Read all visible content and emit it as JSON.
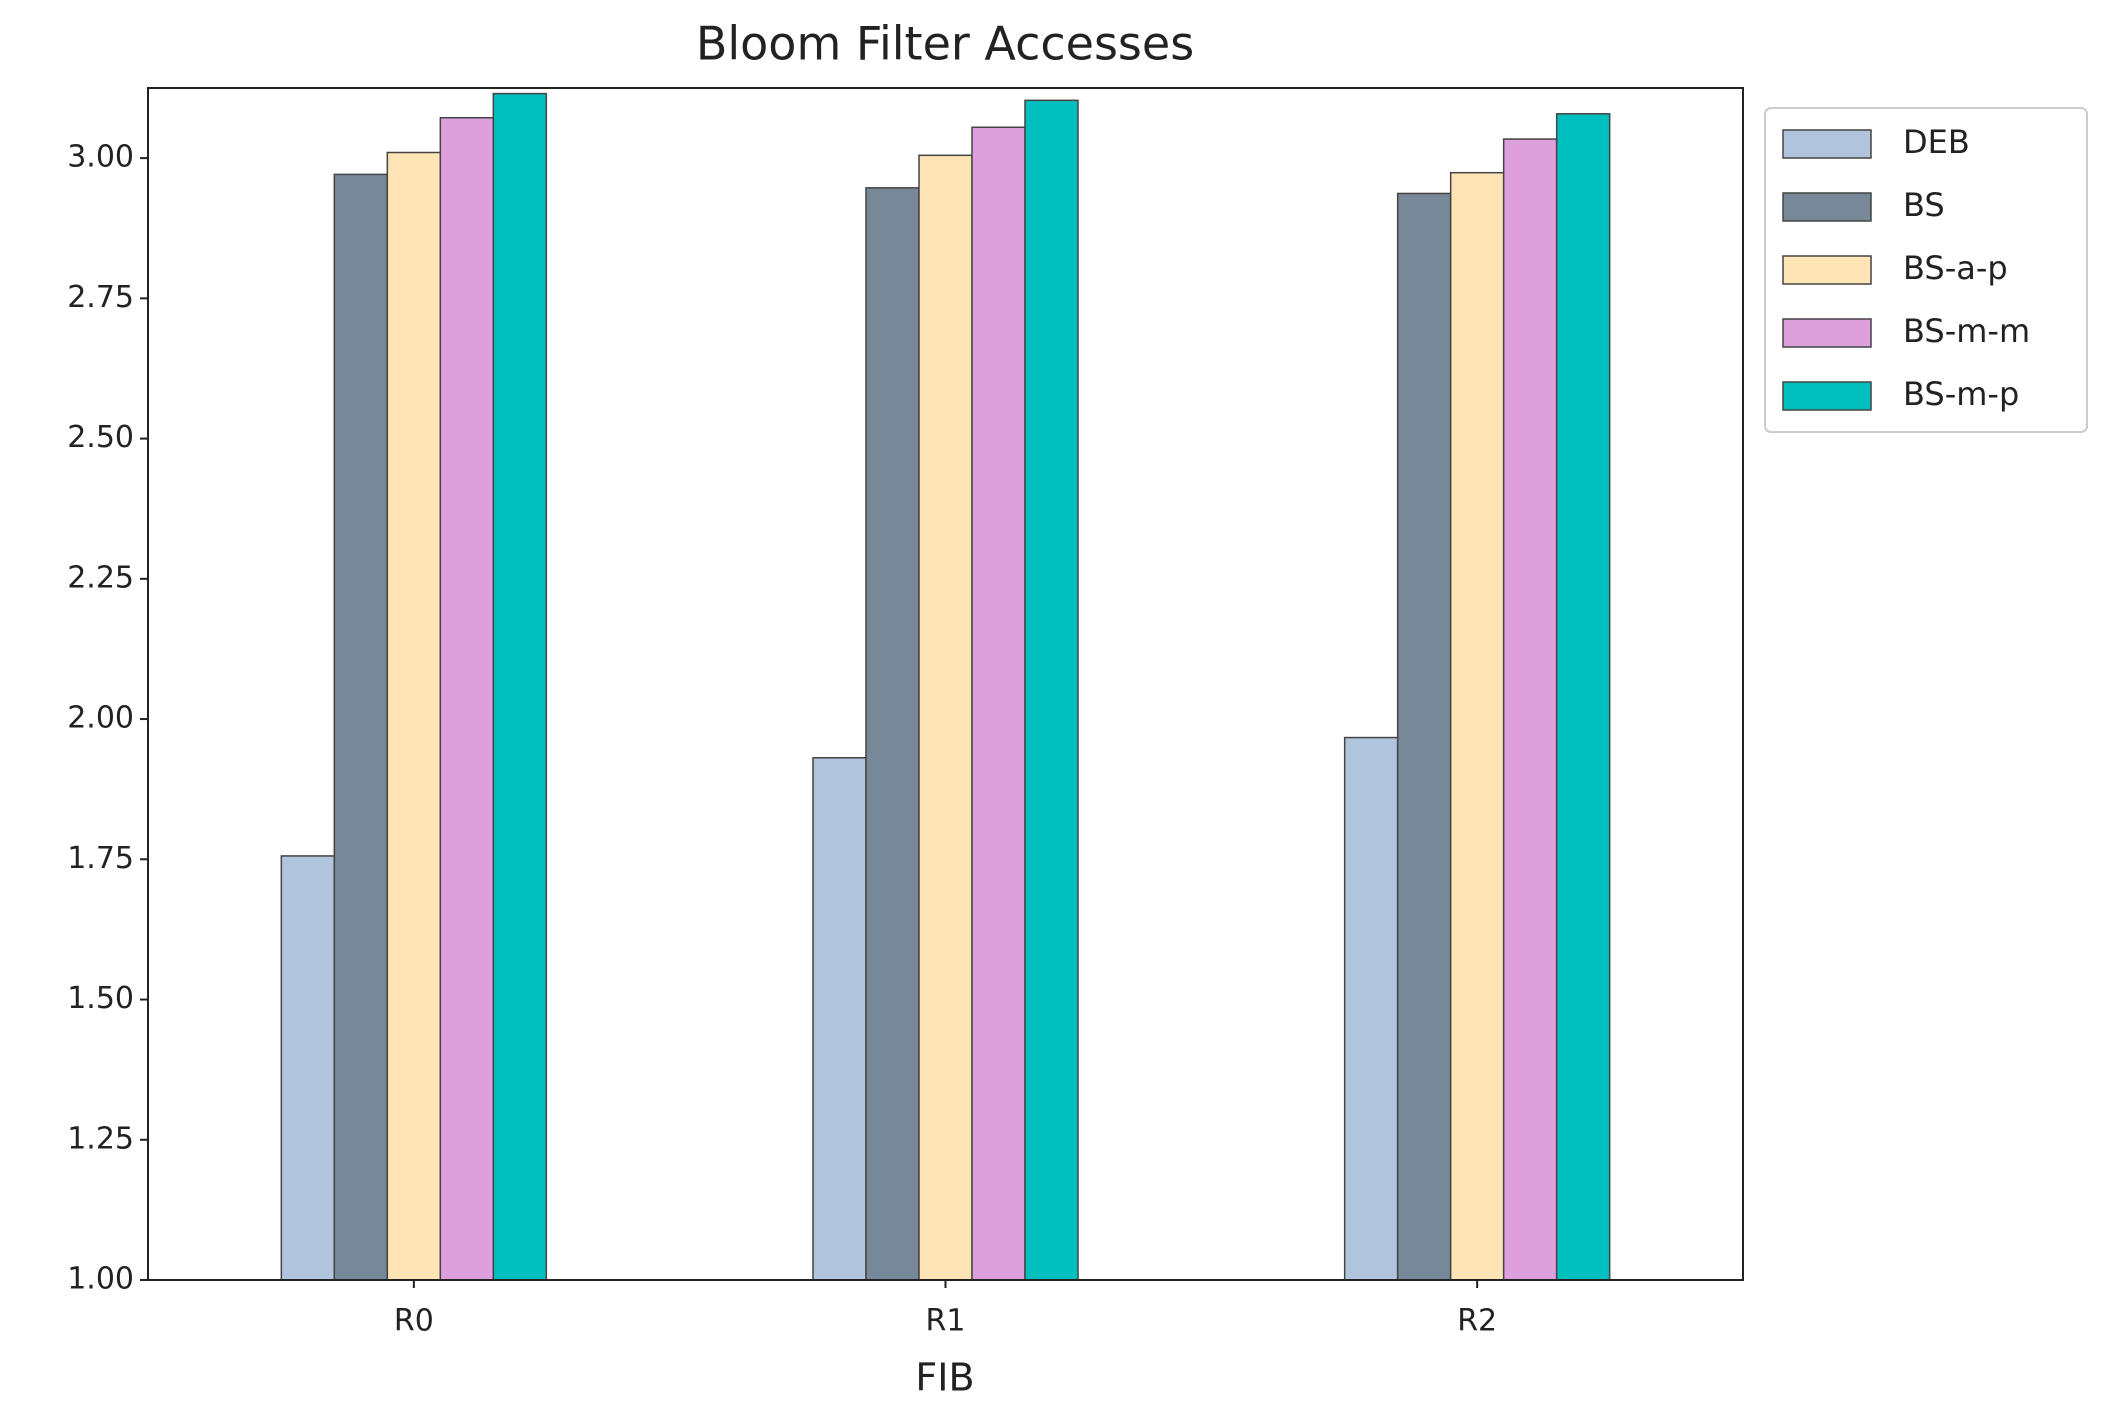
{
  "chart_data": {
    "type": "bar",
    "title": "Bloom Filter Accesses",
    "x_label": "FIB",
    "categories": [
      "R0",
      "R1",
      "R2"
    ],
    "series": [
      {
        "name": "DEB",
        "color": "#b0c4de",
        "values": [
          1.756,
          1.931,
          1.967
        ]
      },
      {
        "name": "BS",
        "color": "#778899",
        "values": [
          2.971,
          2.947,
          2.937
        ]
      },
      {
        "name": "BS-a-p",
        "color": "#ffe4b5",
        "values": [
          3.01,
          3.005,
          2.974
        ]
      },
      {
        "name": "BS-m-m",
        "color": "#dda0dd",
        "values": [
          3.072,
          3.055,
          3.034
        ]
      },
      {
        "name": "BS-m-p",
        "color": "#00bfbf",
        "values": [
          3.115,
          3.103,
          3.079
        ]
      }
    ],
    "ylim": [
      1,
      3.125
    ],
    "yticks": [
      {
        "value": 1,
        "label": "1.00"
      },
      {
        "value": 1.25,
        "label": "1.25"
      },
      {
        "value": 1.5,
        "label": "1.50"
      },
      {
        "value": 1.75,
        "label": "1.75"
      },
      {
        "value": 2,
        "label": "2.00"
      },
      {
        "value": 2.25,
        "label": "2.25"
      },
      {
        "value": 2.5,
        "label": "2.50"
      },
      {
        "value": 2.75,
        "label": "2.75"
      },
      {
        "value": 3,
        "label": "3.00"
      }
    ],
    "legend": "outside-upper-right",
    "grid": false
  }
}
